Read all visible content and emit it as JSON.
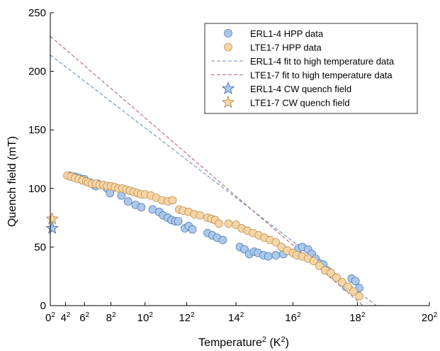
{
  "chart_data": {
    "type": "scatter",
    "xlabel_main": "Temperature",
    "xlabel_sup": "2",
    "xlabel_unit": " (K",
    "xlabel_unit_sup": "2",
    "xlabel_close": ")",
    "ylabel": "Quench field (mT)",
    "xlim": [
      0,
      400
    ],
    "ylim": [
      0,
      250
    ],
    "x_scale": "T squared",
    "x_ticks": [
      {
        "value": 0,
        "base": "0",
        "sup": "2"
      },
      {
        "value": 16,
        "base": "4",
        "sup": "2"
      },
      {
        "value": 36,
        "base": "6",
        "sup": "2"
      },
      {
        "value": 64,
        "base": "8",
        "sup": "2"
      },
      {
        "value": 100,
        "base": "10",
        "sup": "2"
      },
      {
        "value": 144,
        "base": "12",
        "sup": "2"
      },
      {
        "value": 196,
        "base": "14",
        "sup": "2"
      },
      {
        "value": 256,
        "base": "16",
        "sup": "2"
      },
      {
        "value": 324,
        "base": "18",
        "sup": "2"
      },
      {
        "value": 400,
        "base": "20",
        "sup": "2"
      }
    ],
    "y_ticks": [
      0,
      50,
      100,
      150,
      200,
      250
    ],
    "grid": false,
    "legend_position": "top-right",
    "series": [
      {
        "name": "ERL1-4 HPP data",
        "kind": "scatter",
        "marker": "circle",
        "color": "#a9c8ec",
        "edge": "#4a72a8",
        "points": [
          [
            20,
            111
          ],
          [
            22,
            110
          ],
          [
            24,
            110
          ],
          [
            26,
            110
          ],
          [
            28,
            109
          ],
          [
            30,
            109
          ],
          [
            32,
            108
          ],
          [
            34,
            107
          ],
          [
            36,
            108
          ],
          [
            38,
            106
          ],
          [
            42,
            105
          ],
          [
            44,
            104
          ],
          [
            46,
            103
          ],
          [
            48,
            102
          ],
          [
            50,
            104
          ],
          [
            60,
            100
          ],
          [
            63,
            96
          ],
          [
            75,
            94
          ],
          [
            82,
            89
          ],
          [
            90,
            86
          ],
          [
            96,
            84
          ],
          [
            108,
            82
          ],
          [
            115,
            80
          ],
          [
            119,
            77
          ],
          [
            124,
            75
          ],
          [
            128,
            73
          ],
          [
            132,
            72
          ],
          [
            135,
            72
          ],
          [
            142,
            66
          ],
          [
            146,
            68
          ],
          [
            150,
            65
          ],
          [
            166,
            62
          ],
          [
            171,
            60
          ],
          [
            176,
            58
          ],
          [
            182,
            56
          ],
          [
            200,
            50
          ],
          [
            205,
            48
          ],
          [
            210,
            44
          ],
          [
            215,
            46
          ],
          [
            219,
            45
          ],
          [
            225,
            43
          ],
          [
            230,
            42
          ],
          [
            238,
            43
          ],
          [
            246,
            44
          ],
          [
            256,
            45
          ],
          [
            262,
            49
          ],
          [
            266,
            50
          ],
          [
            272,
            48
          ],
          [
            276,
            44
          ],
          [
            280,
            40
          ],
          [
            284,
            36
          ],
          [
            288,
            35
          ],
          [
            292,
            30
          ],
          [
            296,
            28
          ],
          [
            302,
            24
          ],
          [
            308,
            20
          ],
          [
            312,
            16
          ],
          [
            318,
            23
          ],
          [
            322,
            21
          ],
          [
            326,
            15
          ]
        ]
      },
      {
        "name": "LTE1-7 HPP data",
        "kind": "scatter",
        "marker": "circle",
        "color": "#f5d5a6",
        "edge": "#b88a4c",
        "points": [
          [
            18,
            111
          ],
          [
            22,
            110
          ],
          [
            26,
            109
          ],
          [
            30,
            108
          ],
          [
            34,
            107
          ],
          [
            38,
            106
          ],
          [
            40,
            105
          ],
          [
            44,
            104
          ],
          [
            48,
            104
          ],
          [
            52,
            103
          ],
          [
            56,
            103
          ],
          [
            60,
            102
          ],
          [
            64,
            102
          ],
          [
            68,
            101
          ],
          [
            72,
            100
          ],
          [
            76,
            100
          ],
          [
            80,
            99
          ],
          [
            84,
            98
          ],
          [
            88,
            97
          ],
          [
            92,
            96
          ],
          [
            96,
            95
          ],
          [
            100,
            95
          ],
          [
            106,
            94
          ],
          [
            112,
            92
          ],
          [
            118,
            90
          ],
          [
            124,
            89
          ],
          [
            129,
            90
          ],
          [
            136,
            82
          ],
          [
            140,
            81
          ],
          [
            146,
            80
          ],
          [
            152,
            78
          ],
          [
            158,
            77
          ],
          [
            166,
            75
          ],
          [
            170,
            74
          ],
          [
            174,
            73
          ],
          [
            178,
            70
          ],
          [
            188,
            70
          ],
          [
            196,
            69
          ],
          [
            202,
            66
          ],
          [
            208,
            64
          ],
          [
            214,
            62
          ],
          [
            220,
            60
          ],
          [
            226,
            58
          ],
          [
            232,
            56
          ],
          [
            238,
            54
          ],
          [
            244,
            50
          ],
          [
            250,
            47
          ],
          [
            256,
            45
          ],
          [
            260,
            43
          ],
          [
            266,
            42
          ],
          [
            272,
            40
          ],
          [
            278,
            38
          ],
          [
            284,
            34
          ],
          [
            290,
            30
          ],
          [
            296,
            28
          ],
          [
            302,
            24
          ],
          [
            308,
            20
          ],
          [
            314,
            16
          ],
          [
            320,
            12
          ],
          [
            326,
            8
          ]
        ]
      },
      {
        "name": "ERL1-4 fit to high temperature data",
        "kind": "line",
        "dashed": true,
        "color": "#6a8fc2",
        "points": [
          [
            0,
            214
          ],
          [
            344,
            0
          ]
        ]
      },
      {
        "name": "LTE1-7 fit to high temperature data",
        "kind": "line",
        "dashed": true,
        "color": "#a86a72",
        "points": [
          [
            0,
            230
          ],
          [
            330,
            0
          ]
        ]
      },
      {
        "name": "ERL1-4 CW quench field",
        "kind": "scatter",
        "marker": "star",
        "color": "#a9c8ec",
        "edge": "#4a72a8",
        "points": [
          [
            2,
            66
          ]
        ]
      },
      {
        "name": "LTE1-7 CW quench field",
        "kind": "scatter",
        "marker": "star",
        "color": "#f5d5a6",
        "edge": "#b88a4c",
        "points": [
          [
            2,
            74
          ]
        ]
      }
    ]
  }
}
